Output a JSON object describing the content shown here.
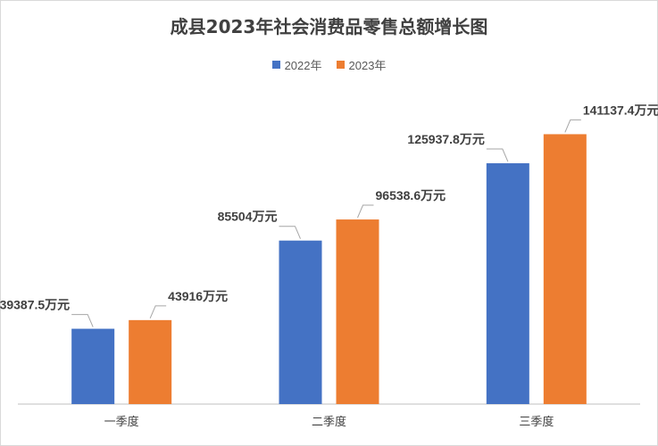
{
  "colors": {
    "series_2022": "#4472c4",
    "series_2023": "#ed7d31",
    "leader": "#a6a6a6",
    "axis": "#bfbfbf"
  },
  "chart_data": {
    "type": "bar",
    "title": "成县2023年社会消费品零售总额增长图",
    "xlabel": "",
    "ylabel": "",
    "categories": [
      "一季度",
      "二季度",
      "三季度"
    ],
    "series": [
      {
        "name": "2022年",
        "values": [
          39387.5,
          85504,
          125937.8
        ],
        "labels": [
          "39387.5万元",
          "85504万元",
          "125937.8万元"
        ]
      },
      {
        "name": "2023年",
        "values": [
          43916,
          96538.6,
          141137.4
        ],
        "labels": [
          "43916万元",
          "96538.6万元",
          "141137.4万元"
        ]
      }
    ],
    "ylim": [
      0,
      160000
    ],
    "grid": false,
    "legend": "top"
  }
}
